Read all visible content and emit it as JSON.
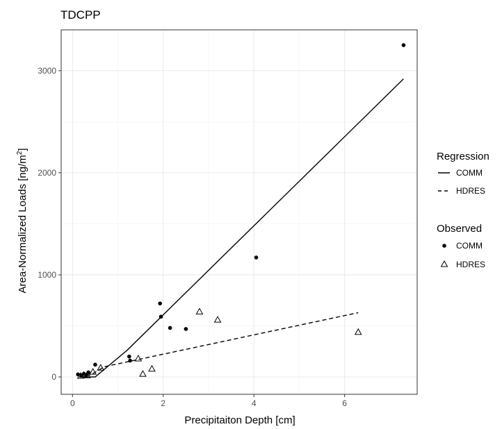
{
  "chart_data": {
    "type": "scatter",
    "title": "TDCPP",
    "xlabel": "Precipitaiton Depth [cm]",
    "ylabel": "Area-Normalized Loads [ng/m",
    "ylabel_sup": "2",
    "ylabel_end": "]",
    "xlim": [
      -0.25,
      7.6
    ],
    "ylim": [
      -170,
      3400
    ],
    "x_ticks": [
      0,
      2,
      4,
      6
    ],
    "y_ticks": [
      0,
      1000,
      2000,
      3000
    ],
    "grid": true,
    "legend_placement": "right",
    "legend": {
      "regression_title": "Regression",
      "observed_title": "Observed"
    },
    "regression": [
      {
        "name": "COMM",
        "style": "solid",
        "points": [
          [
            0.15,
            0
          ],
          [
            0.5,
            0
          ],
          [
            1.2,
            260
          ],
          [
            7.3,
            2920
          ]
        ]
      },
      {
        "name": "HDRES",
        "style": "dashed",
        "points": [
          [
            0.15,
            0
          ],
          [
            0.4,
            20
          ],
          [
            0.7,
            100
          ],
          [
            6.3,
            630
          ]
        ]
      }
    ],
    "observed": [
      {
        "name": "COMM",
        "marker": "circle",
        "x": [
          0.12,
          0.2,
          0.25,
          0.3,
          0.35,
          0.5,
          1.25,
          1.27,
          1.93,
          1.95,
          2.15,
          2.5,
          4.05,
          7.3
        ],
        "y": [
          25,
          15,
          30,
          20,
          45,
          120,
          200,
          160,
          720,
          590,
          480,
          470,
          1170,
          3250
        ]
      },
      {
        "name": "HDRES",
        "marker": "triangle",
        "x": [
          0.18,
          0.25,
          0.32,
          0.45,
          0.62,
          1.45,
          1.55,
          1.75,
          2.8,
          3.2,
          6.3
        ],
        "y": [
          10,
          20,
          15,
          50,
          90,
          180,
          30,
          80,
          640,
          560,
          440
        ]
      }
    ]
  }
}
